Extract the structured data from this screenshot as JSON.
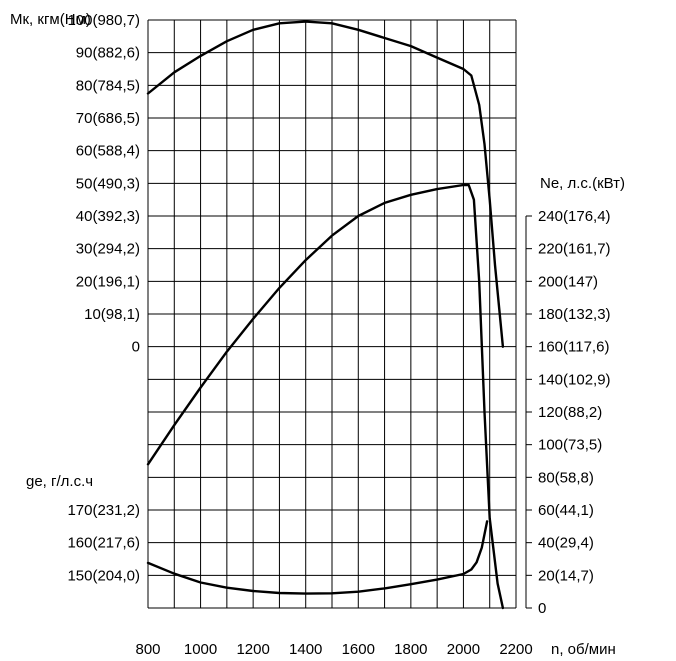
{
  "chart_data": {
    "type": "line",
    "x_axis": {
      "label": "n, об/мин",
      "min": 800,
      "max": 2200,
      "ticks": [
        "800",
        "1000",
        "1200",
        "1400",
        "1600",
        "1800",
        "2000",
        "2200"
      ]
    },
    "torque_axis": {
      "label": "Мк, кгм(Нм)",
      "min": 0,
      "max": 100,
      "ticks": [
        {
          "v": 100,
          "t": "100(980,7)"
        },
        {
          "v": 90,
          "t": "90(882,6)"
        },
        {
          "v": 80,
          "t": "80(784,5)"
        },
        {
          "v": 70,
          "t": "70(686,5)"
        },
        {
          "v": 60,
          "t": "60(588,4)"
        },
        {
          "v": 50,
          "t": "50(490,3)"
        },
        {
          "v": 40,
          "t": "40(392,3)"
        },
        {
          "v": 30,
          "t": "30(294,2)"
        },
        {
          "v": 20,
          "t": "20(196,1)"
        },
        {
          "v": 10,
          "t": "10(98,1)"
        },
        {
          "v": 0,
          "t": "0"
        }
      ]
    },
    "fuel_axis": {
      "label": "ge, г/л.с.ч",
      "ticks": [
        {
          "v": 170,
          "t": "170(231,2)"
        },
        {
          "v": 160,
          "t": "160(217,6)"
        },
        {
          "v": 150,
          "t": "150(204,0)"
        }
      ]
    },
    "power_axis": {
      "label": "Ne, л.с.(кВт)",
      "min": 0,
      "max": 240,
      "ticks": [
        {
          "v": 240,
          "t": "240(176,4)"
        },
        {
          "v": 220,
          "t": "220(161,7)"
        },
        {
          "v": 200,
          "t": "200(147)"
        },
        {
          "v": 180,
          "t": "180(132,3)"
        },
        {
          "v": 160,
          "t": "160(117,6)"
        },
        {
          "v": 140,
          "t": "140(102,9)"
        },
        {
          "v": 120,
          "t": "120(88,2)"
        },
        {
          "v": 100,
          "t": "100(73,5)"
        },
        {
          "v": 80,
          "t": "80(58,8)"
        },
        {
          "v": 60,
          "t": "60(44,1)"
        },
        {
          "v": 40,
          "t": "40(29,4)"
        },
        {
          "v": 20,
          "t": "20(14,7)"
        },
        {
          "v": 0,
          "t": "0"
        }
      ]
    },
    "grid": true,
    "series": [
      {
        "key": "torque",
        "axis": "torque",
        "x": [
          800,
          900,
          1000,
          1100,
          1200,
          1300,
          1400,
          1500,
          1600,
          1700,
          1800,
          1900,
          2000,
          2030,
          2060,
          2080,
          2100,
          2120,
          2150
        ],
        "y": [
          77.5,
          84,
          89,
          93.5,
          97,
          99,
          99.5,
          99,
          97,
          94.5,
          92,
          88.5,
          85,
          83,
          74,
          62,
          45,
          25,
          0
        ]
      },
      {
        "key": "power",
        "axis": "power",
        "x": [
          800,
          900,
          1000,
          1100,
          1200,
          1300,
          1400,
          1500,
          1600,
          1700,
          1800,
          1900,
          2000,
          2020,
          2040,
          2060,
          2080,
          2100,
          2130,
          2150
        ],
        "y": [
          88,
          112,
          135,
          157,
          177,
          196,
          213,
          228,
          240,
          248,
          253,
          256.5,
          259,
          259,
          250,
          200,
          120,
          55,
          15,
          0
        ]
      },
      {
        "key": "fuel",
        "axis": "fuel",
        "x": [
          800,
          900,
          1000,
          1100,
          1200,
          1300,
          1400,
          1500,
          1600,
          1700,
          1800,
          1900,
          2000,
          2030,
          2050,
          2070,
          2090
        ],
        "y": [
          153.8,
          150.5,
          147.8,
          146.2,
          145.2,
          144.6,
          144.4,
          144.5,
          145,
          146,
          147.3,
          148.7,
          150.4,
          151.8,
          154,
          158.5,
          166.5
        ]
      }
    ]
  }
}
